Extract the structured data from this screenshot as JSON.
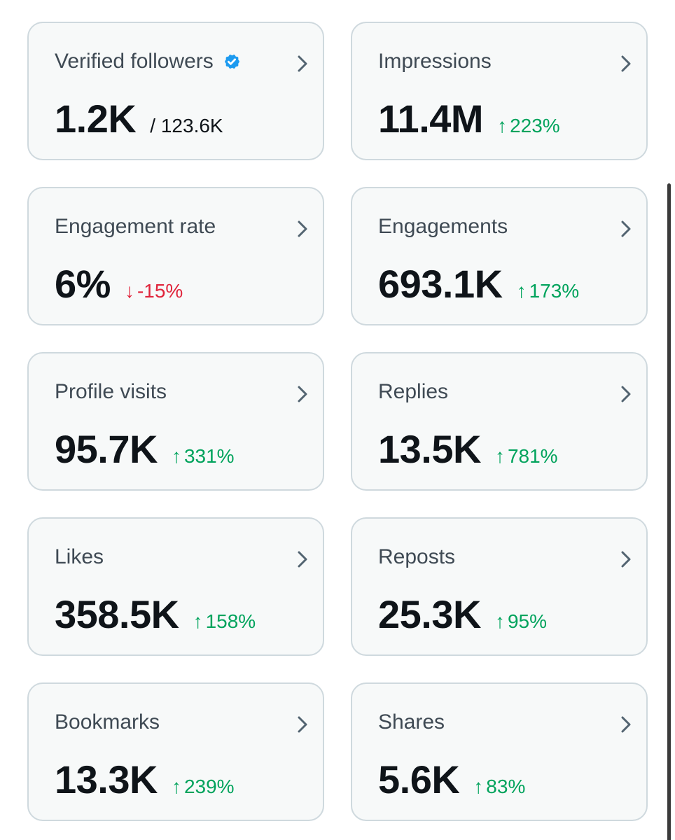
{
  "cards": [
    {
      "label": "Verified followers",
      "value": "1.2K",
      "sub": "/ 123.6K",
      "delta_arrow": "",
      "delta": "",
      "direction": "none",
      "verified": true
    },
    {
      "label": "Impressions",
      "value": "11.4M",
      "sub": "",
      "delta_arrow": "↑",
      "delta": "223%",
      "direction": "up"
    },
    {
      "label": "Engagement rate",
      "value": "6%",
      "sub": "",
      "delta_arrow": "↓",
      "delta": "-15%",
      "direction": "down"
    },
    {
      "label": "Engagements",
      "value": "693.1K",
      "sub": "",
      "delta_arrow": "↑",
      "delta": "173%",
      "direction": "up"
    },
    {
      "label": "Profile visits",
      "value": "95.7K",
      "sub": "",
      "delta_arrow": "↑",
      "delta": "331%",
      "direction": "up"
    },
    {
      "label": "Replies",
      "value": "13.5K",
      "sub": "",
      "delta_arrow": "↑",
      "delta": "781%",
      "direction": "up"
    },
    {
      "label": "Likes",
      "value": "358.5K",
      "sub": "",
      "delta_arrow": "↑",
      "delta": "158%",
      "direction": "up"
    },
    {
      "label": "Reposts",
      "value": "25.3K",
      "sub": "",
      "delta_arrow": "↑",
      "delta": "95%",
      "direction": "up"
    },
    {
      "label": "Bookmarks",
      "value": "13.3K",
      "sub": "",
      "delta_arrow": "↑",
      "delta": "239%",
      "direction": "up"
    },
    {
      "label": "Shares",
      "value": "5.6K",
      "sub": "",
      "delta_arrow": "↑",
      "delta": "83%",
      "direction": "up"
    }
  ],
  "colors": {
    "up": "#00a35c",
    "down": "#e0243b",
    "verified": "#1d9bf0",
    "card_bg": "#f7f9f9",
    "card_border": "#cfd9de"
  },
  "icons": {
    "verified": "verified-badge-icon",
    "chevron": "chevron-right-icon",
    "up_arrow": "arrow-up-icon",
    "down_arrow": "arrow-down-icon"
  }
}
